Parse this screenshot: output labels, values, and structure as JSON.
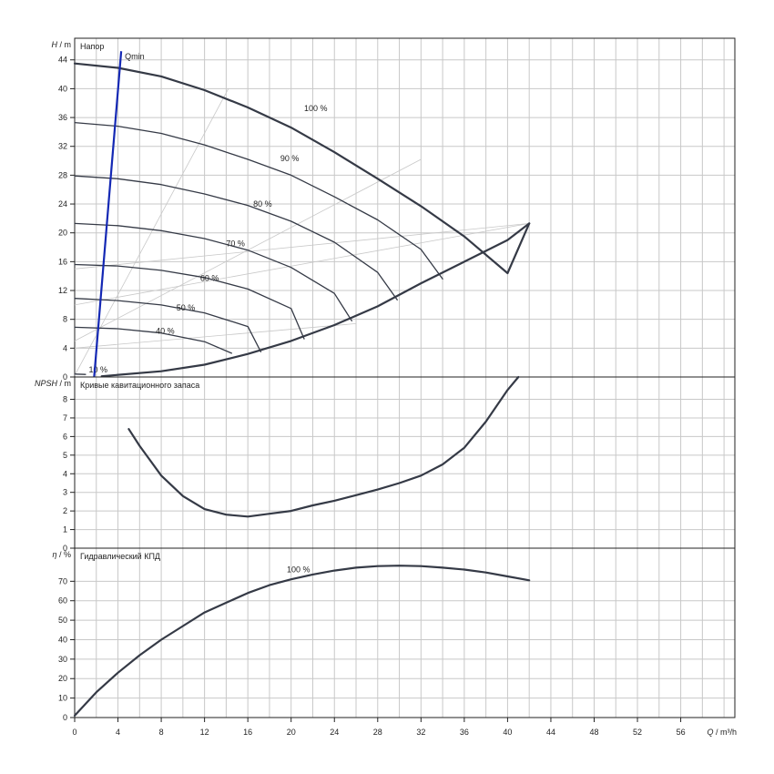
{
  "chart_data": [
    {
      "id": "head",
      "type": "line",
      "title": "Напор",
      "ylabel_symbol": "H",
      "ylabel_unit": "m",
      "xlim": [
        0,
        61
      ],
      "ylim": [
        0,
        47
      ],
      "yticks": [
        0,
        4,
        8,
        12,
        16,
        20,
        24,
        28,
        32,
        36,
        40,
        44
      ],
      "grid": true,
      "curve_label_suffix": " %",
      "series": [
        {
          "name": "100",
          "x": [
            0,
            4,
            8,
            12,
            16,
            20,
            24,
            28,
            32,
            36,
            40,
            42
          ],
          "y": [
            43.5,
            42.9,
            41.7,
            39.8,
            37.4,
            34.6,
            31.2,
            27.5,
            23.7,
            19.5,
            14.4,
            21.3
          ],
          "label_x": 21.2,
          "label_y": 37.3
        },
        {
          "name": "90",
          "x": [
            0,
            4,
            8,
            12,
            16,
            20,
            24,
            28,
            32,
            34
          ],
          "y": [
            35.3,
            34.8,
            33.8,
            32.2,
            30.2,
            28.0,
            25.0,
            21.8,
            17.7,
            13.6
          ],
          "label_x": 19.0,
          "label_y": 30.3
        },
        {
          "name": "80",
          "x": [
            0,
            4,
            8,
            12,
            16,
            20,
            24,
            28,
            29.8
          ],
          "y": [
            27.9,
            27.5,
            26.7,
            25.4,
            23.8,
            21.6,
            18.7,
            14.5,
            10.7
          ],
          "label_x": 16.5,
          "label_y": 24.0
        },
        {
          "name": "70",
          "x": [
            0,
            4,
            8,
            12,
            16,
            20,
            24,
            25.6
          ],
          "y": [
            21.3,
            21.0,
            20.3,
            19.2,
            17.6,
            15.2,
            11.6,
            7.8
          ],
          "label_x": 14.0,
          "label_y": 18.5
        },
        {
          "name": "60",
          "x": [
            0,
            4,
            8,
            12,
            16,
            20,
            21.2
          ],
          "y": [
            15.6,
            15.4,
            14.8,
            13.8,
            12.2,
            9.5,
            5.3
          ],
          "label_x": 11.6,
          "label_y": 13.7
        },
        {
          "name": "50",
          "x": [
            0,
            4,
            8,
            12,
            16,
            17.2
          ],
          "y": [
            10.9,
            10.6,
            10.0,
            8.9,
            7.0,
            3.5
          ],
          "label_x": 9.4,
          "label_y": 9.6
        },
        {
          "name": "40",
          "x": [
            0,
            4,
            8,
            12,
            14.5
          ],
          "y": [
            6.9,
            6.7,
            6.1,
            4.9,
            3.3
          ],
          "label_x": 7.5,
          "label_y": 6.4
        },
        {
          "name": "10",
          "x": [
            0,
            1.0
          ],
          "y": [
            0.4,
            0.35
          ],
          "label_x": 1.3,
          "label_y": 1.0
        }
      ],
      "max_curve": {
        "x": [
          2.5,
          8,
          12,
          16,
          20,
          24,
          28,
          32,
          36,
          40,
          42
        ],
        "y": [
          0.1,
          0.8,
          1.7,
          3.2,
          5.0,
          7.2,
          9.8,
          13.0,
          16.0,
          19.0,
          21.3
        ]
      },
      "construction_lines": [
        {
          "x": [
            0,
            14.2
          ],
          "y": [
            0.2,
            40.0
          ]
        },
        {
          "x": [
            0,
            32.0
          ],
          "y": [
            5.0,
            30.2
          ]
        },
        {
          "x": [
            0,
            42.0
          ],
          "y": [
            10.0,
            21.3
          ]
        },
        {
          "x": [
            0,
            42.0
          ],
          "y": [
            15.0,
            21.3
          ]
        },
        {
          "x": [
            0,
            26.0
          ],
          "y": [
            4.0,
            7.4
          ]
        }
      ],
      "qmin": {
        "label": "Qmin",
        "x": [
          1.8,
          4.3
        ],
        "y": [
          0,
          45.2
        ],
        "color": "#1428b4"
      }
    },
    {
      "id": "npsh",
      "type": "line",
      "title": "Кривые кавитационного запаса",
      "ylabel_symbol": "NPSH",
      "ylabel_unit": "m",
      "xlim": [
        0,
        61
      ],
      "ylim": [
        0,
        9.2
      ],
      "yticks": [
        0,
        1,
        2,
        3,
        4,
        5,
        6,
        7,
        8
      ],
      "grid": true,
      "series": [
        {
          "x": [
            5,
            6,
            8,
            10,
            12,
            14,
            16,
            18,
            20,
            22,
            24,
            26,
            28,
            30,
            32,
            34,
            36,
            38,
            40,
            41
          ],
          "y": [
            6.4,
            5.5,
            3.9,
            2.8,
            2.1,
            1.8,
            1.7,
            1.85,
            2.0,
            2.3,
            2.55,
            2.85,
            3.15,
            3.5,
            3.9,
            4.5,
            5.4,
            6.8,
            8.5,
            9.2
          ]
        }
      ]
    },
    {
      "id": "eta",
      "type": "line",
      "title": "Гидравлический КПД",
      "ylabel_symbol": "η",
      "ylabel_unit": "%",
      "xlim": [
        0,
        61
      ],
      "ylim": [
        0,
        87
      ],
      "yticks": [
        0,
        10,
        20,
        30,
        40,
        50,
        60,
        70
      ],
      "grid": true,
      "xticks": [
        0,
        4,
        8,
        12,
        16,
        20,
        24,
        28,
        32,
        36,
        40,
        44,
        48,
        52,
        56
      ],
      "xlabel_symbol": "Q",
      "xlabel_unit": "m³/h",
      "curve_label_suffix": " %",
      "series": [
        {
          "name": "100",
          "x": [
            0,
            2,
            4,
            6,
            8,
            10,
            12,
            14,
            16,
            18,
            20,
            22,
            24,
            26,
            28,
            30,
            32,
            34,
            36,
            38,
            40,
            42
          ],
          "y": [
            1,
            13,
            23,
            32,
            40,
            47,
            54,
            59,
            64,
            68,
            71,
            73.5,
            75.5,
            77,
            77.8,
            78.0,
            77.8,
            77,
            76,
            74.5,
            72.5,
            70.5
          ],
          "label_x": 19.6,
          "label_y": 76
        }
      ]
    }
  ]
}
